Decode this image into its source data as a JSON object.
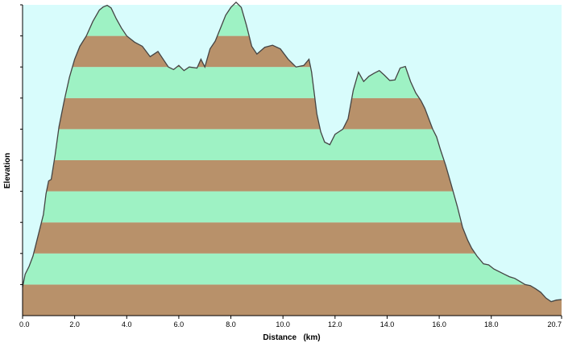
{
  "chart_data": {
    "type": "area",
    "xlabel": "Distance   (km)",
    "ylabel": "Elevation",
    "xlim": [
      0,
      20.7
    ],
    "x_ticks": [
      "0.0",
      "2.0",
      "4.0",
      "6.0",
      "8.0",
      "10.0",
      "12.0",
      "14.0",
      "16.0",
      "18.0",
      "20.7"
    ],
    "y_tick_count": 10,
    "grid": false,
    "colors": {
      "sky": "#d8fcfc",
      "band_light": "#9ef2c4",
      "band_dark": "#b8916a",
      "profile_line": "#444444",
      "axis": "#000000"
    },
    "series": [
      {
        "x": [
          0.0,
          0.1,
          0.25,
          0.4,
          0.6,
          0.8,
          0.9,
          1.0,
          1.1,
          1.25,
          1.4,
          1.6,
          1.8,
          2.0,
          2.2,
          2.45,
          2.7,
          2.95,
          3.1,
          3.25,
          3.4,
          3.6,
          3.8,
          4.0,
          4.3,
          4.6,
          4.9,
          5.2,
          5.4,
          5.6,
          5.8,
          6.0,
          6.2,
          6.4,
          6.7,
          6.85,
          7.0,
          7.2,
          7.4,
          7.6,
          7.8,
          8.0,
          8.2,
          8.4,
          8.6,
          8.8,
          9.0,
          9.3,
          9.6,
          9.9,
          10.2,
          10.5,
          10.8,
          11.0,
          11.1,
          11.2,
          11.3,
          11.45,
          11.6,
          11.8,
          12.0,
          12.15,
          12.3,
          12.5,
          12.7,
          12.9,
          13.1,
          13.3,
          13.5,
          13.7,
          13.9,
          14.1,
          14.3,
          14.5,
          14.7,
          14.9,
          15.1,
          15.3,
          15.45,
          15.6,
          15.75,
          15.9,
          16.05,
          16.25,
          16.45,
          16.7,
          16.9,
          17.1,
          17.25,
          17.45,
          17.7,
          17.9,
          18.1,
          18.3,
          18.5,
          18.7,
          18.9,
          19.1,
          19.3,
          19.5,
          19.7,
          19.9,
          20.1,
          20.3,
          20.5,
          20.7
        ],
        "y": [
          5.5,
          8.0,
          9.5,
          11.5,
          15.5,
          19.5,
          23.5,
          26.0,
          26.3,
          31.0,
          36.5,
          41.5,
          46.0,
          49.5,
          52.0,
          54.0,
          56.8,
          59.0,
          59.6,
          59.9,
          59.4,
          57.3,
          55.5,
          54.0,
          52.8,
          52.0,
          50.0,
          51.0,
          49.5,
          48.0,
          47.5,
          48.3,
          47.3,
          48.0,
          47.8,
          49.5,
          48.0,
          51.5,
          53.0,
          55.5,
          58.0,
          59.5,
          60.5,
          59.5,
          56.0,
          52.0,
          50.5,
          51.8,
          52.2,
          51.5,
          49.5,
          48.0,
          48.3,
          49.5,
          47.0,
          43.0,
          39.0,
          35.5,
          33.5,
          33.0,
          35.0,
          35.5,
          36.0,
          38.0,
          43.5,
          47.0,
          45.2,
          46.2,
          46.8,
          47.3,
          46.4,
          45.4,
          45.5,
          47.8,
          48.1,
          45.2,
          43.0,
          41.5,
          40.0,
          38.0,
          36.0,
          34.5,
          32.0,
          29.0,
          25.5,
          21.0,
          17.0,
          14.5,
          13.0,
          11.5,
          10.0,
          9.8,
          9.0,
          8.5,
          8.0,
          7.5,
          7.2,
          6.6,
          6.0,
          5.8,
          5.2,
          4.5,
          3.4,
          2.7,
          3.0,
          3.1
        ]
      }
    ]
  }
}
